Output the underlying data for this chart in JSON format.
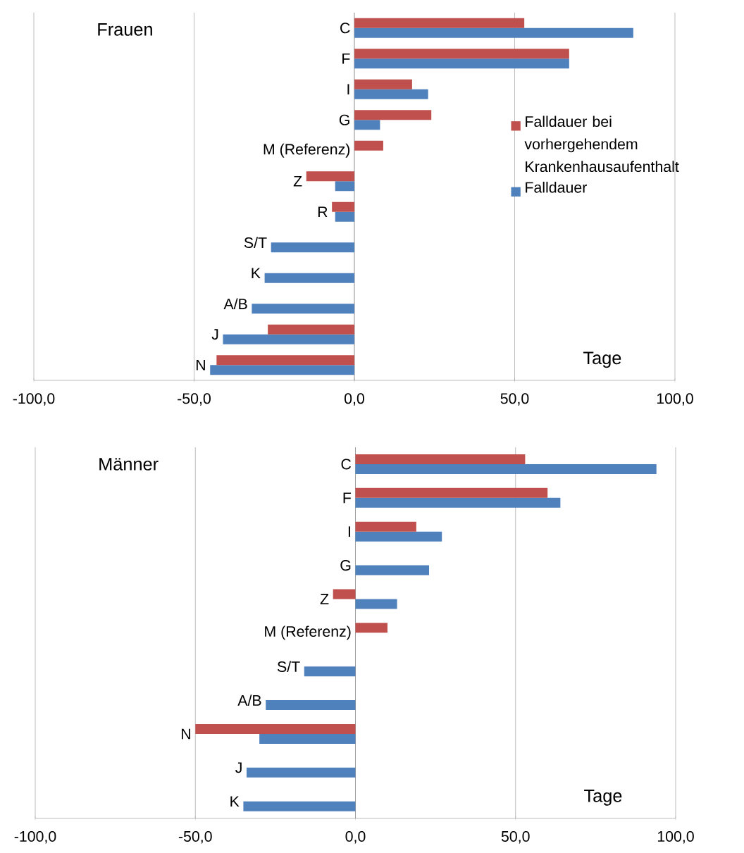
{
  "chart_data": [
    {
      "type": "bar",
      "orientation": "horizontal",
      "title": "Frauen",
      "xlabel": "Tage",
      "categories": [
        "C",
        "F",
        "I",
        "G",
        "M (Referenz)",
        "Z",
        "R",
        "S/T",
        "K",
        "A/B",
        "J",
        "N"
      ],
      "series": [
        {
          "name": "Falldauer bei vorhergehendem Krankenhausaufenthalt",
          "color": "#c0504d",
          "values": [
            53,
            67,
            18,
            24,
            9,
            -15,
            -7,
            null,
            null,
            null,
            -27,
            -43
          ]
        },
        {
          "name": "Falldauer",
          "color": "#4f81bd",
          "values": [
            87,
            67,
            23,
            8,
            null,
            -6,
            -6,
            -26,
            -28,
            -32,
            -41,
            -45
          ]
        }
      ],
      "xlim": [
        -100,
        100
      ],
      "xticks": [
        {
          "value": -100,
          "label": "-100,0"
        },
        {
          "value": -50,
          "label": "-50,0"
        },
        {
          "value": 0,
          "label": "0,0"
        },
        {
          "value": 50,
          "label": "50,0"
        },
        {
          "value": 100,
          "label": "100,0"
        }
      ],
      "grid": "x",
      "legend": "right"
    },
    {
      "type": "bar",
      "orientation": "horizontal",
      "title": "Männer",
      "xlabel": "Tage",
      "categories": [
        "C",
        "F",
        "I",
        "G",
        "Z",
        "M (Referenz)",
        "S/T",
        "A/B",
        "N",
        "J",
        "K"
      ],
      "series": [
        {
          "color": "#c0504d",
          "values": [
            53,
            60,
            19,
            null,
            -7,
            10,
            null,
            null,
            -50,
            null,
            null
          ]
        },
        {
          "color": "#4f81bd",
          "values": [
            94,
            64,
            27,
            23,
            13,
            null,
            -16,
            -28,
            -30,
            -34,
            -35
          ]
        }
      ],
      "xlim": [
        -100,
        100
      ],
      "xticks": [
        {
          "value": -100,
          "label": "-100,0"
        },
        {
          "value": -50,
          "label": "-50,0"
        },
        {
          "value": 0,
          "label": "0,0"
        },
        {
          "value": 50,
          "label": "50,0"
        },
        {
          "value": 100,
          "label": "100,0"
        }
      ],
      "grid": "x"
    }
  ]
}
